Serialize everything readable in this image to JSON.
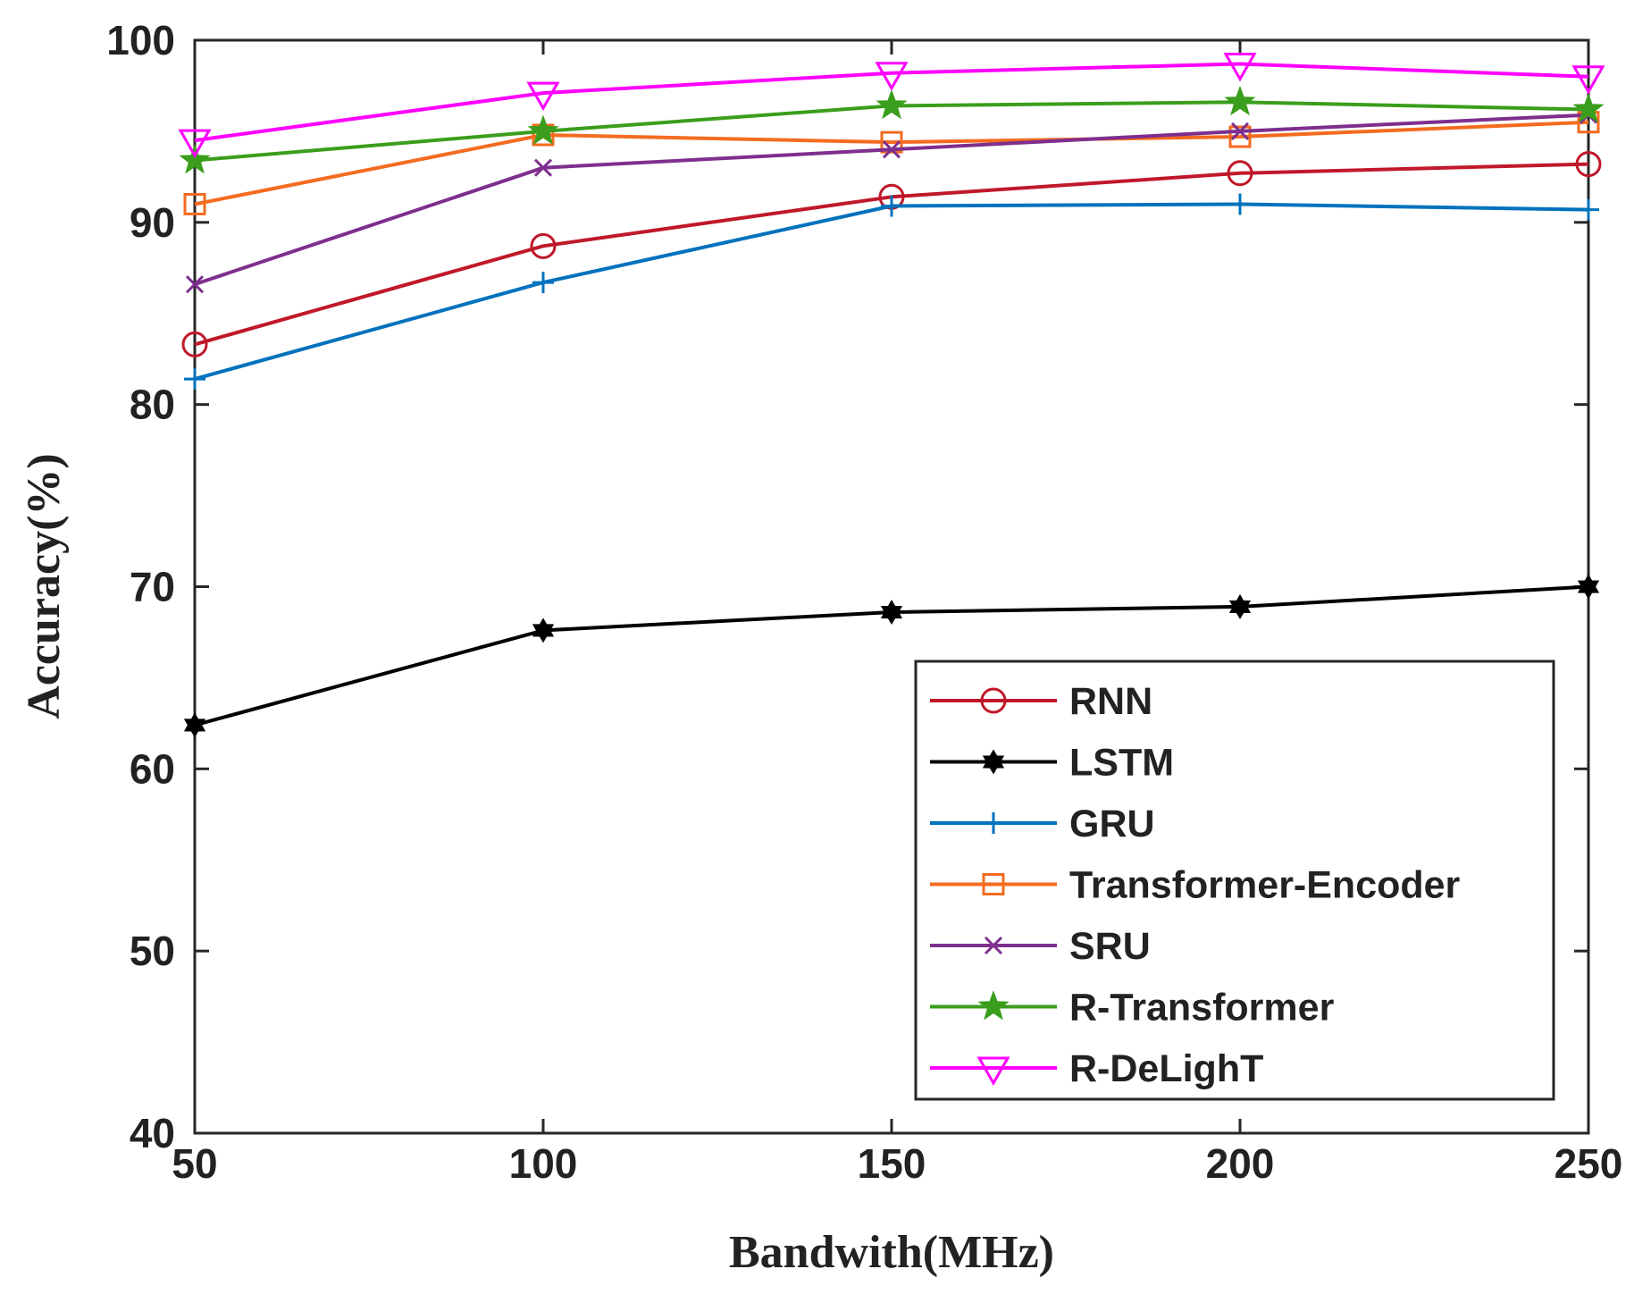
{
  "chart_data": {
    "type": "line",
    "title": "",
    "xlabel": "Bandwith(MHz)",
    "ylabel": "Accuracy(%)",
    "x": [
      50,
      100,
      150,
      200,
      250
    ],
    "xticks": [
      50,
      100,
      150,
      200,
      250
    ],
    "xtick_labels": [
      "50",
      "100",
      "150",
      "200",
      "250"
    ],
    "yticks": [
      40,
      50,
      60,
      70,
      80,
      90,
      100
    ],
    "ytick_labels": [
      "40",
      "50",
      "60",
      "70",
      "80",
      "90",
      "100"
    ],
    "xlim": [
      50,
      250
    ],
    "ylim": [
      40,
      100
    ],
    "grid": false,
    "legend_position": "lower-right",
    "series": [
      {
        "name": "RNN",
        "color": "#c0182a",
        "marker": "circle",
        "values": [
          83.3,
          88.7,
          91.4,
          92.7,
          93.2
        ]
      },
      {
        "name": "LSTM",
        "color": "#000000",
        "marker": "filled-star",
        "values": [
          62.4,
          67.6,
          68.6,
          68.9,
          70.0
        ]
      },
      {
        "name": "GRU",
        "color": "#0072bd",
        "marker": "plus",
        "values": [
          81.4,
          86.7,
          90.9,
          91.0,
          90.7
        ]
      },
      {
        "name": "Transformer-Encoder",
        "color": "#f46b1f",
        "marker": "square",
        "values": [
          91.0,
          94.8,
          94.4,
          94.7,
          95.5
        ]
      },
      {
        "name": "SRU",
        "color": "#7e2f8e",
        "marker": "x",
        "values": [
          86.6,
          93.0,
          94.0,
          95.0,
          95.9
        ]
      },
      {
        "name": "R-Transformer",
        "color": "#3a9e1c",
        "marker": "star",
        "values": [
          93.4,
          95.0,
          96.4,
          96.6,
          96.2
        ]
      },
      {
        "name": "R-DeLighT",
        "color": "#ff00ff",
        "marker": "triangle-down",
        "values": [
          94.5,
          97.1,
          98.2,
          98.7,
          98.0
        ]
      }
    ]
  }
}
